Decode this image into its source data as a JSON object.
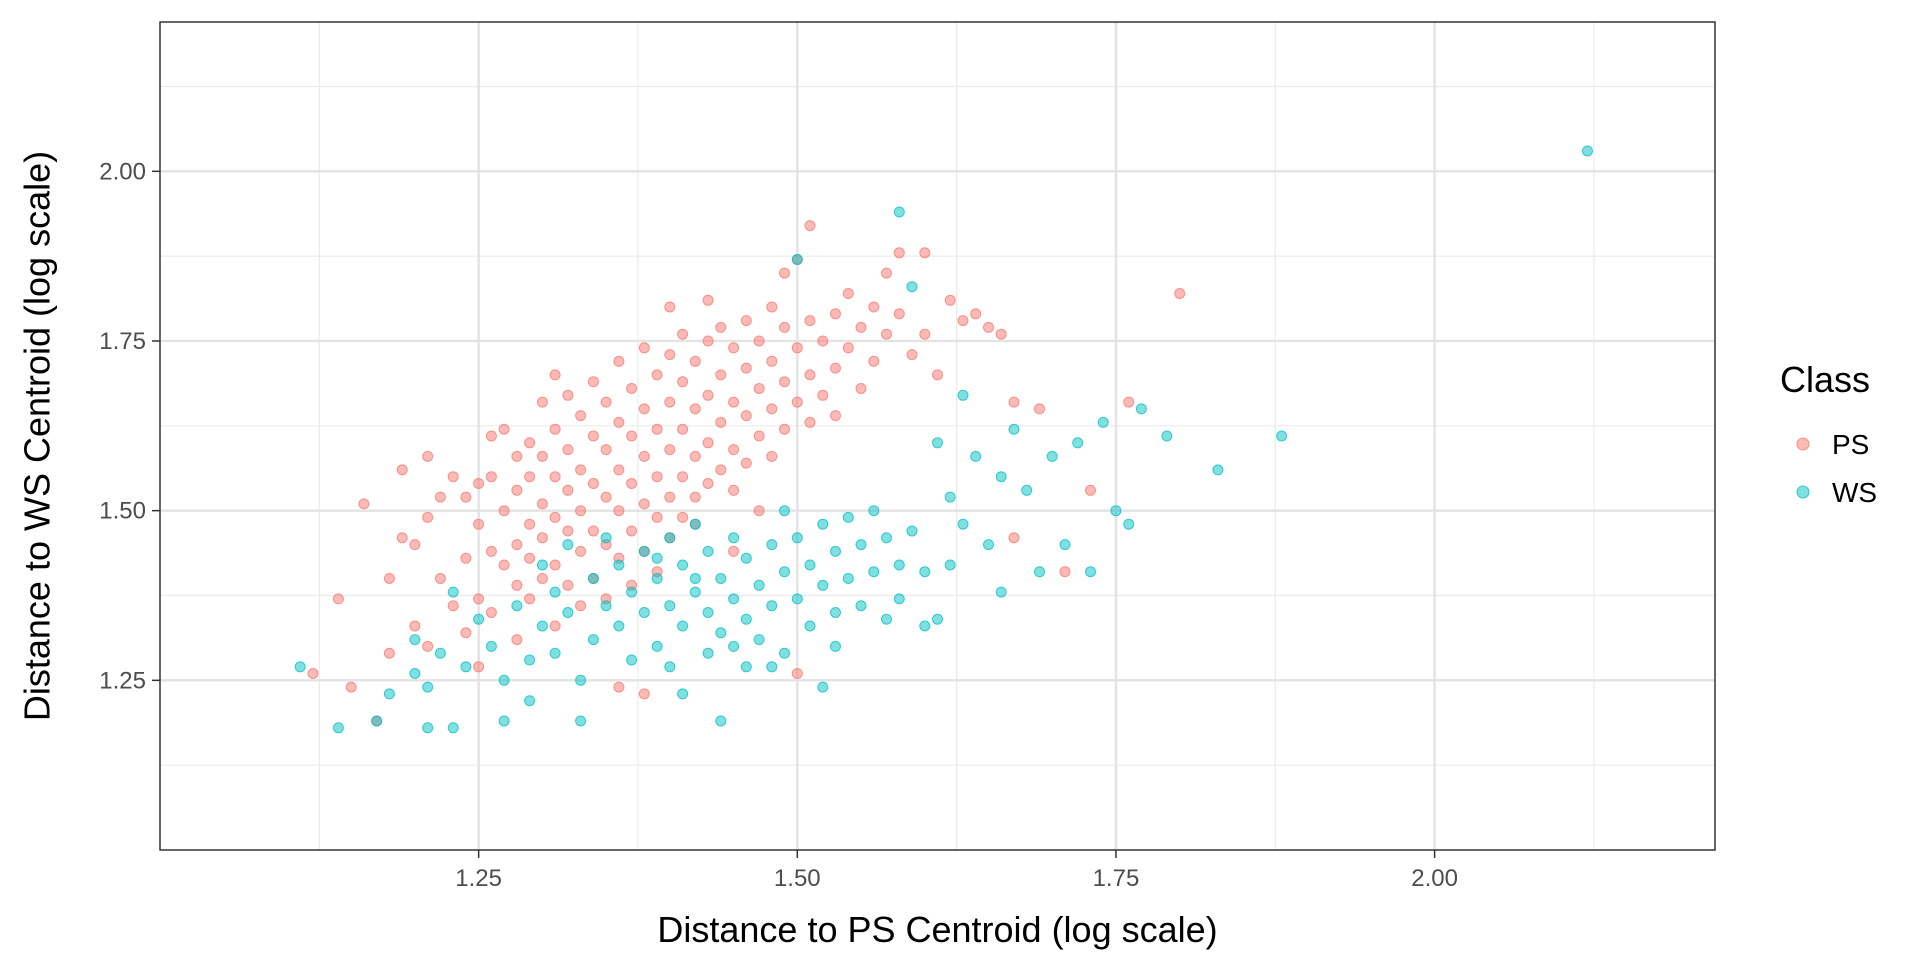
{
  "chart_data": {
    "type": "scatter",
    "title": "",
    "xlabel": "Distance to PS Centroid (log scale)",
    "ylabel": "Distance to WS Centroid (log scale)",
    "xlim": [
      1.0,
      2.22
    ],
    "ylim": [
      1.0,
      2.22
    ],
    "x_ticks": [
      1.25,
      1.5,
      1.75,
      2.0
    ],
    "x_tick_labels": [
      "1.25",
      "1.50",
      "1.75",
      "2.00"
    ],
    "y_ticks": [
      1.25,
      1.5,
      1.75,
      2.0
    ],
    "y_tick_labels": [
      "1.25",
      "1.50",
      "1.75",
      "2.00"
    ],
    "grid": true,
    "legend": {
      "title": "Class",
      "position": "right"
    },
    "series": [
      {
        "name": "PS",
        "color": "#F8766D",
        "points": [
          [
            1.12,
            1.26
          ],
          [
            1.14,
            1.37
          ],
          [
            1.15,
            1.24
          ],
          [
            1.16,
            1.51
          ],
          [
            1.17,
            1.19
          ],
          [
            1.18,
            1.4
          ],
          [
            1.18,
            1.29
          ],
          [
            1.19,
            1.46
          ],
          [
            1.19,
            1.56
          ],
          [
            1.2,
            1.45
          ],
          [
            1.2,
            1.33
          ],
          [
            1.21,
            1.58
          ],
          [
            1.21,
            1.49
          ],
          [
            1.21,
            1.3
          ],
          [
            1.22,
            1.52
          ],
          [
            1.22,
            1.4
          ],
          [
            1.23,
            1.55
          ],
          [
            1.23,
            1.36
          ],
          [
            1.24,
            1.52
          ],
          [
            1.24,
            1.43
          ],
          [
            1.24,
            1.32
          ],
          [
            1.25,
            1.54
          ],
          [
            1.25,
            1.48
          ],
          [
            1.25,
            1.37
          ],
          [
            1.25,
            1.27
          ],
          [
            1.26,
            1.61
          ],
          [
            1.26,
            1.55
          ],
          [
            1.26,
            1.44
          ],
          [
            1.26,
            1.35
          ],
          [
            1.27,
            1.62
          ],
          [
            1.27,
            1.5
          ],
          [
            1.27,
            1.42
          ],
          [
            1.28,
            1.58
          ],
          [
            1.28,
            1.53
          ],
          [
            1.28,
            1.45
          ],
          [
            1.28,
            1.39
          ],
          [
            1.28,
            1.31
          ],
          [
            1.29,
            1.6
          ],
          [
            1.29,
            1.55
          ],
          [
            1.29,
            1.48
          ],
          [
            1.29,
            1.43
          ],
          [
            1.29,
            1.37
          ],
          [
            1.3,
            1.66
          ],
          [
            1.3,
            1.58
          ],
          [
            1.3,
            1.51
          ],
          [
            1.3,
            1.46
          ],
          [
            1.3,
            1.4
          ],
          [
            1.31,
            1.7
          ],
          [
            1.31,
            1.62
          ],
          [
            1.31,
            1.55
          ],
          [
            1.31,
            1.49
          ],
          [
            1.31,
            1.42
          ],
          [
            1.31,
            1.33
          ],
          [
            1.32,
            1.67
          ],
          [
            1.32,
            1.59
          ],
          [
            1.32,
            1.53
          ],
          [
            1.32,
            1.47
          ],
          [
            1.32,
            1.39
          ],
          [
            1.33,
            1.64
          ],
          [
            1.33,
            1.56
          ],
          [
            1.33,
            1.5
          ],
          [
            1.33,
            1.44
          ],
          [
            1.33,
            1.36
          ],
          [
            1.34,
            1.69
          ],
          [
            1.34,
            1.61
          ],
          [
            1.34,
            1.54
          ],
          [
            1.34,
            1.47
          ],
          [
            1.34,
            1.4
          ],
          [
            1.35,
            1.66
          ],
          [
            1.35,
            1.59
          ],
          [
            1.35,
            1.52
          ],
          [
            1.35,
            1.45
          ],
          [
            1.35,
            1.37
          ],
          [
            1.36,
            1.72
          ],
          [
            1.36,
            1.63
          ],
          [
            1.36,
            1.56
          ],
          [
            1.36,
            1.5
          ],
          [
            1.36,
            1.43
          ],
          [
            1.36,
            1.24
          ],
          [
            1.37,
            1.68
          ],
          [
            1.37,
            1.61
          ],
          [
            1.37,
            1.54
          ],
          [
            1.37,
            1.47
          ],
          [
            1.37,
            1.39
          ],
          [
            1.38,
            1.74
          ],
          [
            1.38,
            1.65
          ],
          [
            1.38,
            1.58
          ],
          [
            1.38,
            1.51
          ],
          [
            1.38,
            1.44
          ],
          [
            1.38,
            1.23
          ],
          [
            1.39,
            1.7
          ],
          [
            1.39,
            1.62
          ],
          [
            1.39,
            1.55
          ],
          [
            1.39,
            1.49
          ],
          [
            1.39,
            1.41
          ],
          [
            1.4,
            1.8
          ],
          [
            1.4,
            1.73
          ],
          [
            1.4,
            1.66
          ],
          [
            1.4,
            1.59
          ],
          [
            1.4,
            1.52
          ],
          [
            1.4,
            1.46
          ],
          [
            1.41,
            1.76
          ],
          [
            1.41,
            1.69
          ],
          [
            1.41,
            1.62
          ],
          [
            1.41,
            1.55
          ],
          [
            1.41,
            1.49
          ],
          [
            1.42,
            1.72
          ],
          [
            1.42,
            1.65
          ],
          [
            1.42,
            1.58
          ],
          [
            1.42,
            1.52
          ],
          [
            1.43,
            1.81
          ],
          [
            1.43,
            1.75
          ],
          [
            1.43,
            1.67
          ],
          [
            1.43,
            1.6
          ],
          [
            1.43,
            1.54
          ],
          [
            1.44,
            1.77
          ],
          [
            1.44,
            1.7
          ],
          [
            1.44,
            1.63
          ],
          [
            1.44,
            1.56
          ],
          [
            1.45,
            1.74
          ],
          [
            1.45,
            1.66
          ],
          [
            1.45,
            1.59
          ],
          [
            1.45,
            1.53
          ],
          [
            1.46,
            1.78
          ],
          [
            1.46,
            1.71
          ],
          [
            1.46,
            1.64
          ],
          [
            1.46,
            1.57
          ],
          [
            1.47,
            1.75
          ],
          [
            1.47,
            1.68
          ],
          [
            1.47,
            1.61
          ],
          [
            1.48,
            1.8
          ],
          [
            1.48,
            1.72
          ],
          [
            1.48,
            1.65
          ],
          [
            1.48,
            1.58
          ],
          [
            1.49,
            1.85
          ],
          [
            1.49,
            1.77
          ],
          [
            1.49,
            1.69
          ],
          [
            1.49,
            1.62
          ],
          [
            1.5,
            1.87
          ],
          [
            1.5,
            1.74
          ],
          [
            1.5,
            1.66
          ],
          [
            1.5,
            1.26
          ],
          [
            1.51,
            1.92
          ],
          [
            1.51,
            1.78
          ],
          [
            1.51,
            1.7
          ],
          [
            1.51,
            1.63
          ],
          [
            1.52,
            1.75
          ],
          [
            1.52,
            1.67
          ],
          [
            1.53,
            1.79
          ],
          [
            1.53,
            1.71
          ],
          [
            1.53,
            1.64
          ],
          [
            1.54,
            1.82
          ],
          [
            1.54,
            1.74
          ],
          [
            1.55,
            1.77
          ],
          [
            1.55,
            1.68
          ],
          [
            1.56,
            1.8
          ],
          [
            1.56,
            1.72
          ],
          [
            1.57,
            1.85
          ],
          [
            1.57,
            1.76
          ],
          [
            1.58,
            1.88
          ],
          [
            1.58,
            1.79
          ],
          [
            1.59,
            1.73
          ],
          [
            1.6,
            1.88
          ],
          [
            1.6,
            1.76
          ],
          [
            1.61,
            1.7
          ],
          [
            1.62,
            1.81
          ],
          [
            1.63,
            1.78
          ],
          [
            1.64,
            1.79
          ],
          [
            1.65,
            1.77
          ],
          [
            1.66,
            1.76
          ],
          [
            1.67,
            1.66
          ],
          [
            1.67,
            1.46
          ],
          [
            1.69,
            1.65
          ],
          [
            1.71,
            1.41
          ],
          [
            1.73,
            1.53
          ],
          [
            1.76,
            1.66
          ],
          [
            1.8,
            1.82
          ],
          [
            1.42,
            1.48
          ],
          [
            1.45,
            1.44
          ],
          [
            1.47,
            1.5
          ]
        ]
      },
      {
        "name": "WS",
        "color": "#00BFC4",
        "points": [
          [
            1.11,
            1.27
          ],
          [
            1.14,
            1.18
          ],
          [
            1.17,
            1.19
          ],
          [
            1.18,
            1.23
          ],
          [
            1.2,
            1.31
          ],
          [
            1.2,
            1.26
          ],
          [
            1.21,
            1.24
          ],
          [
            1.21,
            1.18
          ],
          [
            1.22,
            1.29
          ],
          [
            1.23,
            1.38
          ],
          [
            1.23,
            1.18
          ],
          [
            1.24,
            1.27
          ],
          [
            1.25,
            1.34
          ],
          [
            1.26,
            1.3
          ],
          [
            1.27,
            1.25
          ],
          [
            1.27,
            1.19
          ],
          [
            1.28,
            1.36
          ],
          [
            1.29,
            1.28
          ],
          [
            1.29,
            1.22
          ],
          [
            1.3,
            1.42
          ],
          [
            1.3,
            1.33
          ],
          [
            1.31,
            1.38
          ],
          [
            1.31,
            1.29
          ],
          [
            1.32,
            1.45
          ],
          [
            1.32,
            1.35
          ],
          [
            1.33,
            1.25
          ],
          [
            1.33,
            1.19
          ],
          [
            1.34,
            1.4
          ],
          [
            1.34,
            1.31
          ],
          [
            1.35,
            1.46
          ],
          [
            1.35,
            1.36
          ],
          [
            1.36,
            1.42
          ],
          [
            1.36,
            1.33
          ],
          [
            1.37,
            1.38
          ],
          [
            1.37,
            1.28
          ],
          [
            1.38,
            1.44
          ],
          [
            1.38,
            1.35
          ],
          [
            1.39,
            1.4
          ],
          [
            1.39,
            1.3
          ],
          [
            1.4,
            1.46
          ],
          [
            1.4,
            1.36
          ],
          [
            1.4,
            1.27
          ],
          [
            1.41,
            1.42
          ],
          [
            1.41,
            1.33
          ],
          [
            1.41,
            1.23
          ],
          [
            1.42,
            1.48
          ],
          [
            1.42,
            1.38
          ],
          [
            1.43,
            1.44
          ],
          [
            1.43,
            1.35
          ],
          [
            1.43,
            1.29
          ],
          [
            1.44,
            1.4
          ],
          [
            1.44,
            1.32
          ],
          [
            1.44,
            1.19
          ],
          [
            1.45,
            1.46
          ],
          [
            1.45,
            1.37
          ],
          [
            1.46,
            1.43
          ],
          [
            1.46,
            1.34
          ],
          [
            1.46,
            1.27
          ],
          [
            1.47,
            1.39
          ],
          [
            1.47,
            1.31
          ],
          [
            1.48,
            1.45
          ],
          [
            1.48,
            1.36
          ],
          [
            1.49,
            1.5
          ],
          [
            1.49,
            1.41
          ],
          [
            1.49,
            1.29
          ],
          [
            1.5,
            1.87
          ],
          [
            1.5,
            1.46
          ],
          [
            1.5,
            1.37
          ],
          [
            1.51,
            1.42
          ],
          [
            1.51,
            1.33
          ],
          [
            1.52,
            1.48
          ],
          [
            1.52,
            1.39
          ],
          [
            1.52,
            1.24
          ],
          [
            1.53,
            1.44
          ],
          [
            1.53,
            1.35
          ],
          [
            1.54,
            1.49
          ],
          [
            1.54,
            1.4
          ],
          [
            1.55,
            1.45
          ],
          [
            1.55,
            1.36
          ],
          [
            1.56,
            1.5
          ],
          [
            1.56,
            1.41
          ],
          [
            1.57,
            1.46
          ],
          [
            1.57,
            1.34
          ],
          [
            1.58,
            1.94
          ],
          [
            1.58,
            1.42
          ],
          [
            1.59,
            1.83
          ],
          [
            1.59,
            1.47
          ],
          [
            1.6,
            1.41
          ],
          [
            1.6,
            1.33
          ],
          [
            1.61,
            1.6
          ],
          [
            1.61,
            1.34
          ],
          [
            1.62,
            1.52
          ],
          [
            1.63,
            1.67
          ],
          [
            1.63,
            1.48
          ],
          [
            1.64,
            1.58
          ],
          [
            1.65,
            1.45
          ],
          [
            1.66,
            1.55
          ],
          [
            1.66,
            1.38
          ],
          [
            1.67,
            1.62
          ],
          [
            1.68,
            1.53
          ],
          [
            1.69,
            1.41
          ],
          [
            1.7,
            1.58
          ],
          [
            1.71,
            1.45
          ],
          [
            1.72,
            1.6
          ],
          [
            1.73,
            1.41
          ],
          [
            1.74,
            1.63
          ],
          [
            1.75,
            1.5
          ],
          [
            1.76,
            1.48
          ],
          [
            1.77,
            1.65
          ],
          [
            1.79,
            1.61
          ],
          [
            1.83,
            1.56
          ],
          [
            1.88,
            1.61
          ],
          [
            2.12,
            2.03
          ],
          [
            1.39,
            1.43
          ],
          [
            1.42,
            1.4
          ],
          [
            1.45,
            1.3
          ],
          [
            1.48,
            1.27
          ],
          [
            1.53,
            1.3
          ],
          [
            1.58,
            1.37
          ],
          [
            1.62,
            1.42
          ]
        ]
      }
    ]
  }
}
